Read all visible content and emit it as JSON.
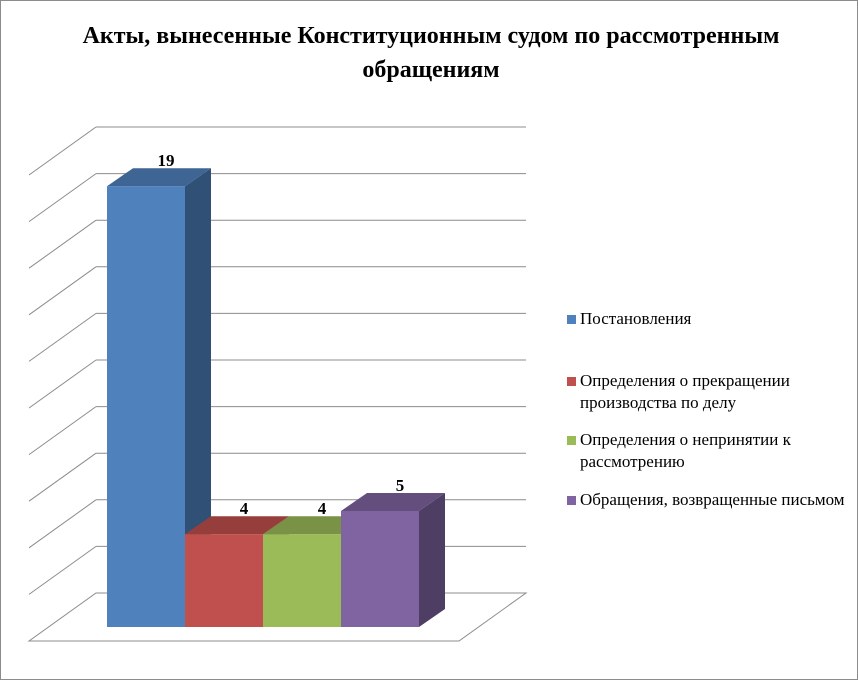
{
  "chart_data": {
    "type": "bar",
    "title": "Акты, вынесенные Конституционным судом по рассмотренным обращениям",
    "categories": [
      "Постановления",
      "Определения о прекращении производства по делу",
      "Определения о непринятии к рассмотрению",
      "Обращения, возвращенные письмом"
    ],
    "values": [
      19,
      4,
      4,
      5
    ],
    "colors": [
      "#4f81bd",
      "#c0504d",
      "#9bbb59",
      "#8064a2"
    ],
    "ylim": [
      0,
      20
    ],
    "grid": true,
    "legend_position": "right",
    "three_d": true
  }
}
